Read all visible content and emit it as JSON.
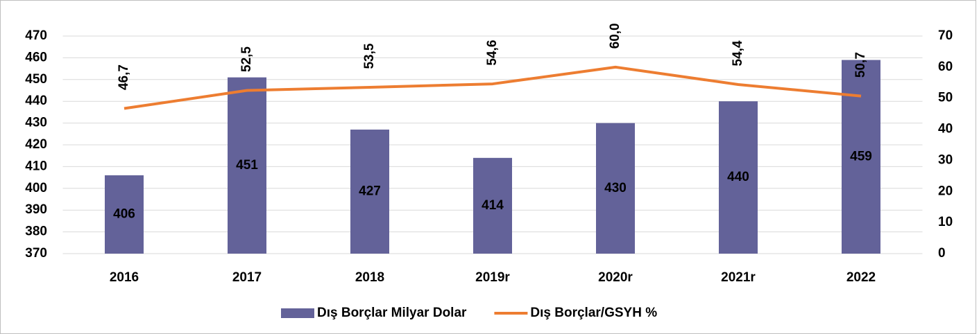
{
  "chart_data": {
    "type": "bar_line",
    "categories": [
      "2016",
      "2017",
      "2018",
      "2019r",
      "2020r",
      "2021r",
      "2022"
    ],
    "series": [
      {
        "name": "Dış Borçlar Milyar Dolar",
        "type": "bar",
        "color": "#636299",
        "values": [
          406,
          451,
          427,
          414,
          430,
          440,
          459
        ]
      },
      {
        "name": "Dış Borçlar/GSYH %",
        "type": "line",
        "axis": "y2",
        "color": "#ed7d31",
        "values": [
          46.7,
          52.5,
          53.5,
          54.6,
          60.0,
          54.4,
          50.7
        ],
        "value_labels": [
          "46,7",
          "52,5",
          "53,5",
          "54,6",
          "60,0",
          "54,4",
          "50,7"
        ]
      }
    ],
    "ylim": [
      370,
      470
    ],
    "yticks": [
      370,
      380,
      390,
      400,
      410,
      420,
      430,
      440,
      450,
      460,
      470
    ],
    "y2lim": [
      0,
      70
    ],
    "y2ticks": [
      0,
      10,
      20,
      30,
      40,
      50,
      60,
      70
    ],
    "grid": true,
    "legend": "bottom"
  }
}
